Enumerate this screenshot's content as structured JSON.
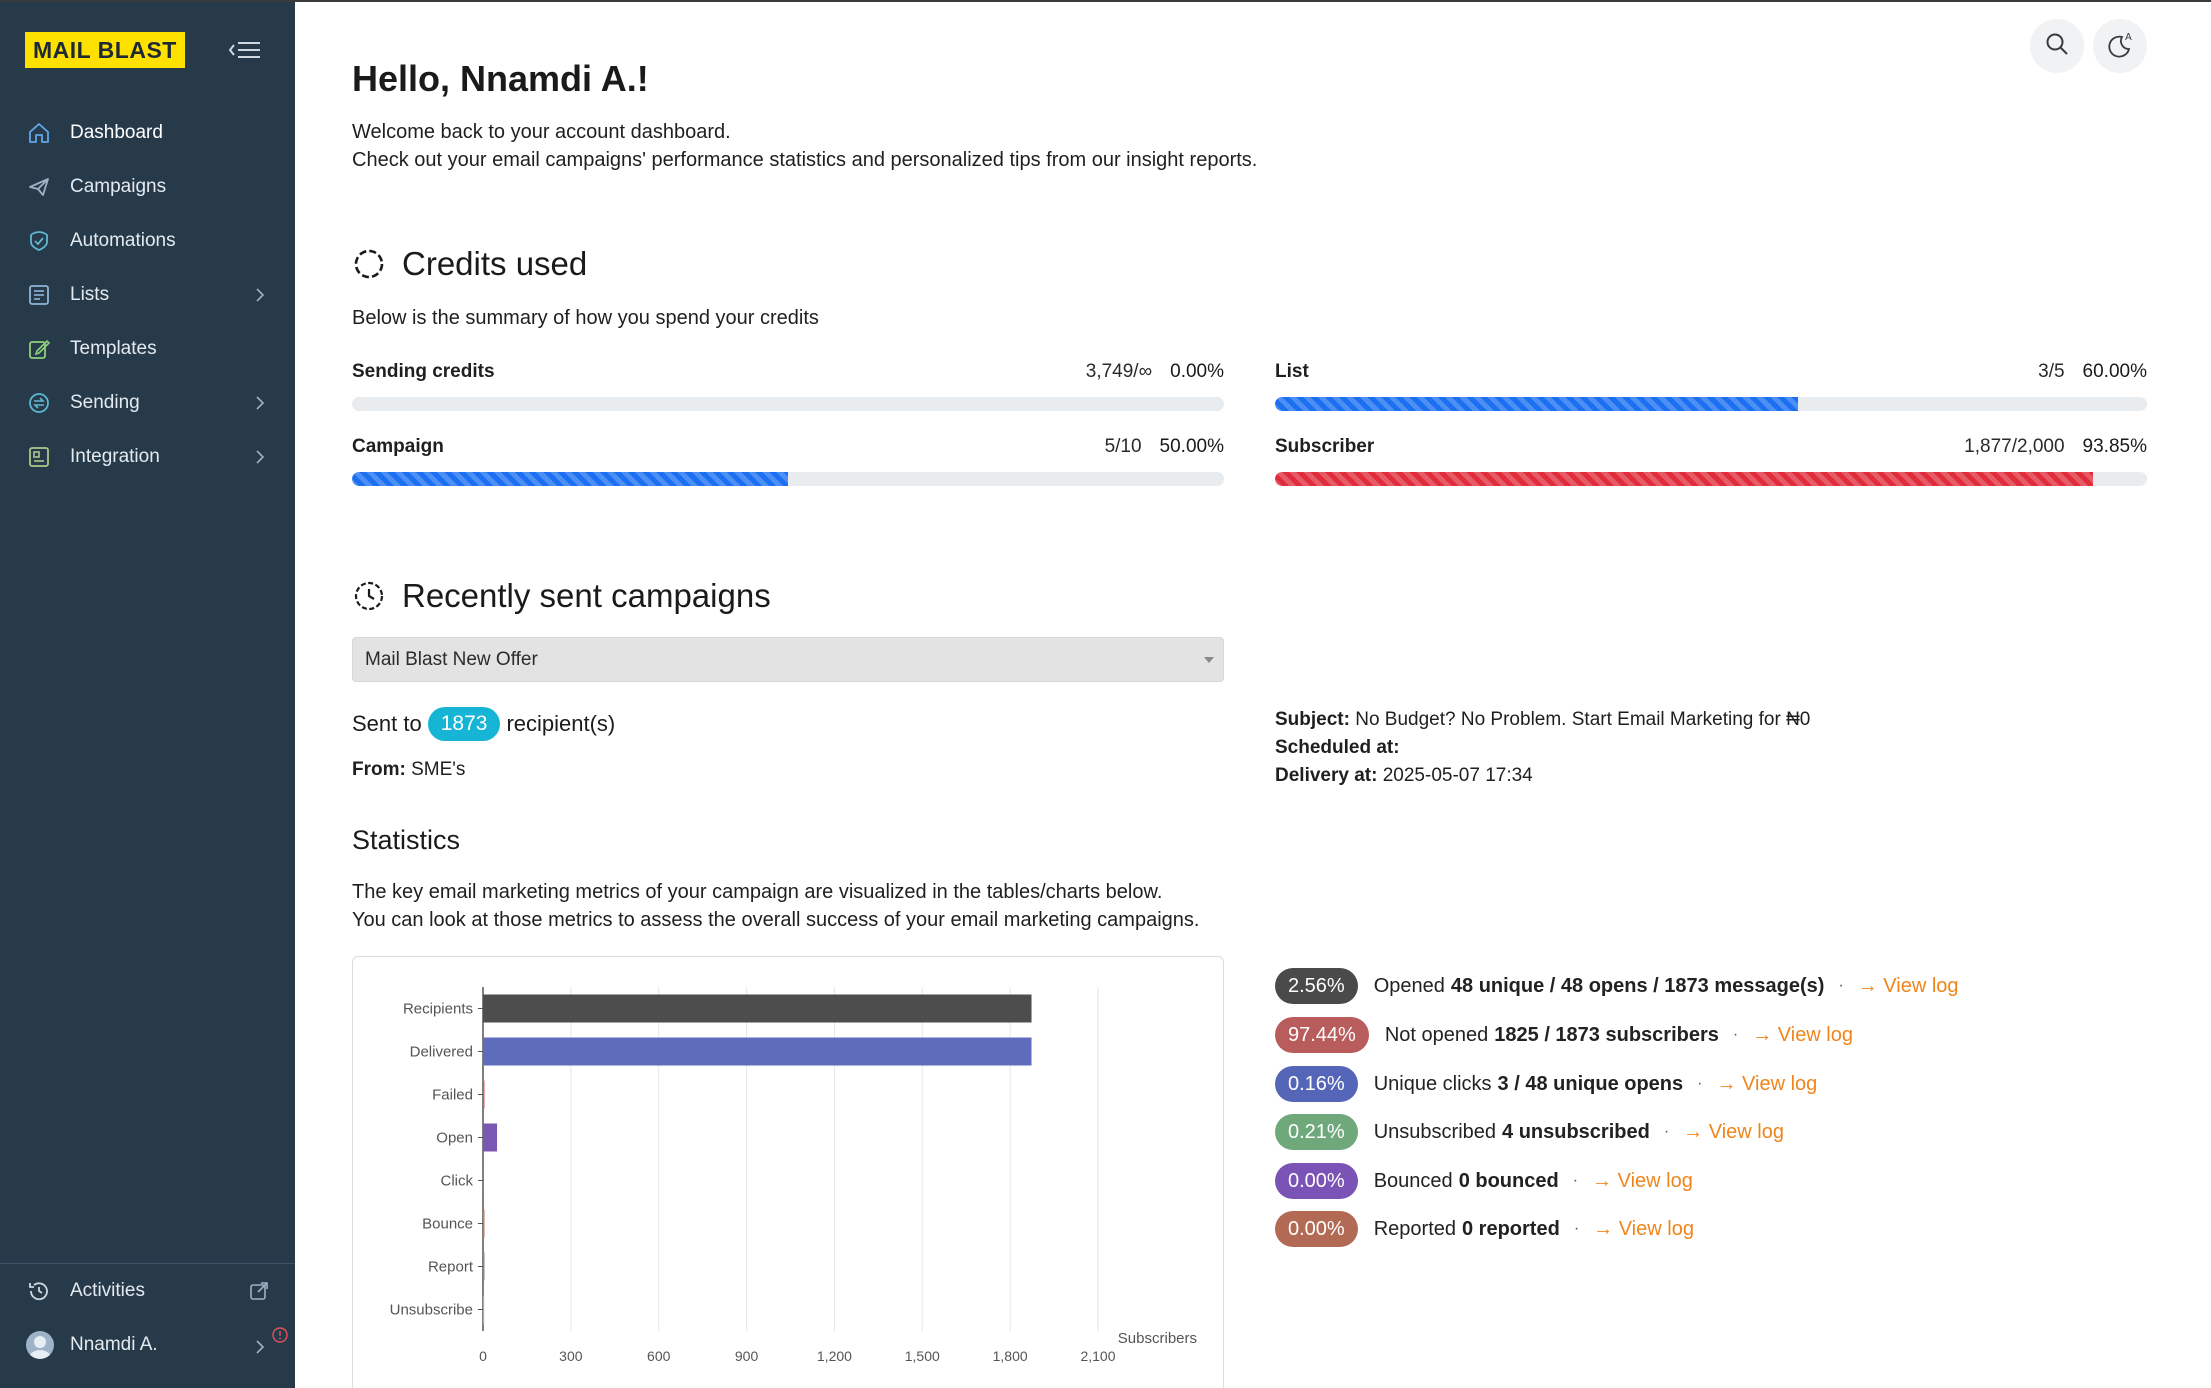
{
  "app": {
    "logo": "MAIL BLAST"
  },
  "sidebar": {
    "items": [
      {
        "label": "Dashboard",
        "icon": "home-icon"
      },
      {
        "label": "Campaigns",
        "icon": "send-icon"
      },
      {
        "label": "Automations",
        "icon": "automation-icon"
      },
      {
        "label": "Lists",
        "icon": "list-icon"
      },
      {
        "label": "Templates",
        "icon": "edit-icon"
      },
      {
        "label": "Sending",
        "icon": "sending-icon"
      },
      {
        "label": "Integration",
        "icon": "integration-icon"
      }
    ],
    "activities_label": "Activities",
    "user_name": "Nnamdi A."
  },
  "header": {
    "greeting": "Hello, Nnamdi A.!",
    "welcome_line1": "Welcome back to your account dashboard.",
    "welcome_line2": "Check out your email campaigns' performance statistics and personalized tips from our insight reports."
  },
  "credits": {
    "title": "Credits used",
    "subtitle": "Below is the summary of how you spend your credits",
    "items": [
      {
        "label": "Sending credits",
        "count": "3,749/∞",
        "percent": "0.00%",
        "fraction": 0.0,
        "color": "#1b6ff1"
      },
      {
        "label": "List",
        "count": "3/5",
        "percent": "60.00%",
        "fraction": 0.6,
        "color": "#1b6ff1"
      },
      {
        "label": "Campaign",
        "count": "5/10",
        "percent": "50.00%",
        "fraction": 0.5,
        "color": "#1b6ff1"
      },
      {
        "label": "Subscriber",
        "count": "1,877/2,000",
        "percent": "93.85%",
        "fraction": 0.9385,
        "color": "#e02d3c"
      }
    ]
  },
  "recent": {
    "title": "Recently sent campaigns",
    "selected_campaign": "Mail Blast New Offer",
    "sent_to_prefix": "Sent to",
    "recipients": "1873",
    "sent_to_suffix": "recipient(s)",
    "from_label": "From:",
    "from_value": "SME's",
    "subject_label": "Subject:",
    "subject_value": "No Budget? No Problem. Start Email Marketing for ₦0",
    "scheduled_label": "Scheduled at:",
    "scheduled_value": "",
    "delivery_label": "Delivery at:",
    "delivery_value": "2025-05-07 17:34"
  },
  "statistics": {
    "title": "Statistics",
    "desc_line1": "The key email marketing metrics of your campaign are visualized in the tables/charts below.",
    "desc_line2": "You can look at those metrics to assess the overall success of your email marketing campaigns.",
    "view_log_label": "View log",
    "rows": [
      {
        "percent": "2.56%",
        "label": "Opened",
        "detail": "48 unique / 48 opens / 1873 message(s)",
        "color": "#4a4a4a"
      },
      {
        "percent": "97.44%",
        "label": "Not opened",
        "detail": "1825 / 1873 subscribers",
        "color": "#b85c5c"
      },
      {
        "percent": "0.16%",
        "label": "Unique clicks",
        "detail": "3 / 48 unique opens",
        "color": "#5565b8"
      },
      {
        "percent": "0.21%",
        "label": "Unsubscribed",
        "detail": "4 unsubscribed",
        "color": "#6fa87a"
      },
      {
        "percent": "0.00%",
        "label": "Bounced",
        "detail": "0 bounced",
        "color": "#7b52b5"
      },
      {
        "percent": "0.00%",
        "label": "Reported",
        "detail": "0 reported",
        "color": "#b36a55"
      }
    ]
  },
  "chart_data": {
    "type": "bar",
    "orientation": "horizontal",
    "categories": [
      "Recipients",
      "Delivered",
      "Failed",
      "Open",
      "Click",
      "Bounce",
      "Report",
      "Unsubscribe"
    ],
    "values": [
      1873,
      1873,
      0,
      48,
      3,
      0,
      0,
      4
    ],
    "colors": [
      "#4d4d4d",
      "#5f6cbb",
      "#d95b5b",
      "#7b57b4",
      "#3aa0a8",
      "#c17a5f",
      "#8a8a8a",
      "#9fc27a"
    ],
    "xlabel": "Subscribers",
    "xlim": [
      0,
      2100
    ],
    "xticks": [
      "0",
      "300",
      "600",
      "900",
      "1,200",
      "1,500",
      "1,800",
      "2,100"
    ],
    "xtick_values": [
      0,
      300,
      600,
      900,
      1200,
      1500,
      1800,
      2100
    ],
    "grid": true
  }
}
